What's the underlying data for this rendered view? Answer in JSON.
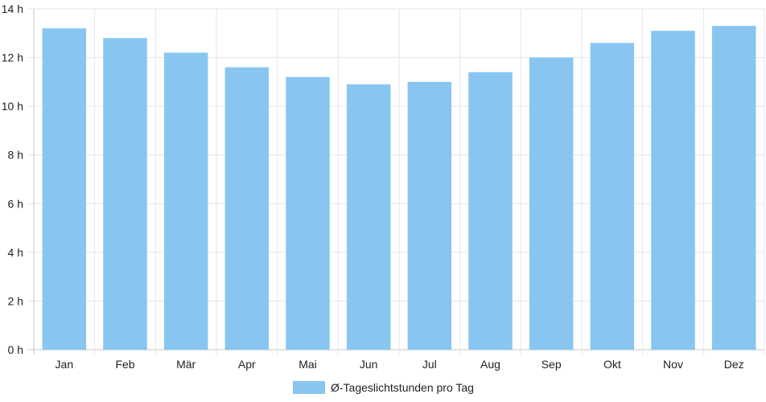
{
  "chart_data": {
    "type": "bar",
    "categories": [
      "Jan",
      "Feb",
      "Mär",
      "Apr",
      "Mai",
      "Jun",
      "Jul",
      "Aug",
      "Sep",
      "Okt",
      "Nov",
      "Dez"
    ],
    "series": [
      {
        "name": "Ø-Tageslichtstunden pro Tag",
        "values": [
          13.2,
          12.8,
          12.2,
          11.6,
          11.2,
          10.9,
          11.0,
          11.4,
          12.0,
          12.6,
          13.1,
          13.3
        ],
        "color": "#88c6f1"
      }
    ],
    "yticks": [
      "0 h",
      "2 h",
      "4 h",
      "6 h",
      "8 h",
      "10 h",
      "12 h",
      "14 h"
    ],
    "ylim": [
      0,
      14
    ],
    "grid": true,
    "legend_position": "bottom"
  }
}
